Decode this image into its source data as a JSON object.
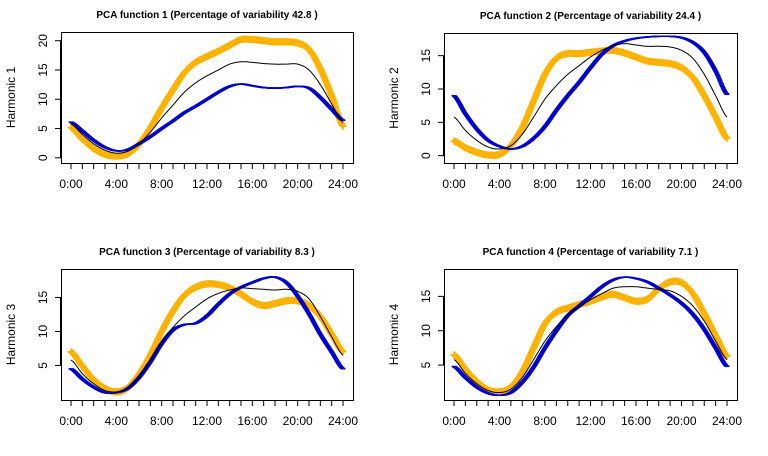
{
  "colors": {
    "mean": "#000000",
    "plus": "#FFB300",
    "minus": "#0000CC"
  },
  "chart_data": [
    {
      "type": "line",
      "title": "PCA function 1 (Percentage of variability 42.8 )",
      "xlabel": "",
      "ylabel": "Harmonic 1",
      "x_tick_labels": [
        "0:00",
        "4:00",
        "8:00",
        "12:00",
        "16:00",
        "20:00",
        "24:00"
      ],
      "y_ticks": [
        0,
        5,
        10,
        15,
        20
      ],
      "xlim": [
        0,
        24
      ],
      "ylim": [
        -0.2,
        20.8
      ],
      "series": [
        {
          "style": "line",
          "color": "#000000",
          "x": [
            0,
            1,
            2,
            3,
            4,
            5,
            6,
            7,
            8,
            9,
            10,
            11,
            12,
            13,
            14,
            15,
            16,
            17,
            18,
            19,
            20,
            21,
            22,
            23,
            24
          ],
          "values": [
            5.8,
            4,
            2.4,
            1.3,
            0.8,
            1.1,
            2.4,
            4.4,
            6.8,
            9,
            11.2,
            12.8,
            14,
            15,
            16,
            16.4,
            16.3,
            16.1,
            16,
            16,
            16,
            15,
            12.5,
            9.2,
            6
          ]
        },
        {
          "style": "plus",
          "color": "#FFB300",
          "x": [
            0,
            1,
            2,
            3,
            4,
            5,
            6,
            7,
            8,
            9,
            10,
            11,
            12,
            13,
            14,
            15,
            16,
            17,
            18,
            19,
            20,
            21,
            22,
            23,
            24
          ],
          "values": [
            5.2,
            3.2,
            1.6,
            0.6,
            0.3,
            0.7,
            2.3,
            5.1,
            8.5,
            11.6,
            14.5,
            16.3,
            17.3,
            18.2,
            19.2,
            20.2,
            20.2,
            20,
            19.8,
            19.8,
            19.6,
            18.5,
            15.2,
            10.6,
            5.4
          ]
        },
        {
          "style": "minus",
          "color": "#0000CC",
          "x": [
            0,
            1,
            2,
            3,
            4,
            5,
            6,
            7,
            8,
            9,
            10,
            11,
            12,
            13,
            14,
            15,
            16,
            17,
            18,
            19,
            20,
            21,
            22,
            23,
            24
          ],
          "values": [
            6.1,
            4.6,
            3,
            1.8,
            1.2,
            1.4,
            2.4,
            3.6,
            5,
            6.3,
            7.7,
            8.8,
            10,
            11.2,
            12.2,
            12.6,
            12.3,
            12,
            11.9,
            12,
            12.2,
            11.9,
            10.3,
            8.3,
            6.4
          ]
        }
      ]
    },
    {
      "type": "line",
      "title": "PCA function 2 (Percentage of variability 24.4 )",
      "xlabel": "",
      "ylabel": "Harmonic 2",
      "x_tick_labels": [
        "0:00",
        "4:00",
        "8:00",
        "12:00",
        "16:00",
        "20:00",
        "24:00"
      ],
      "y_ticks": [
        0,
        5,
        10,
        15
      ],
      "xlim": [
        0,
        24
      ],
      "ylim": [
        -0.5,
        17.8
      ],
      "series": [
        {
          "style": "line",
          "color": "#000000",
          "x": [
            0,
            1,
            2,
            3,
            4,
            5,
            6,
            7,
            8,
            9,
            10,
            11,
            12,
            13,
            14,
            15,
            16,
            17,
            18,
            19,
            20,
            21,
            22,
            23,
            24
          ],
          "values": [
            5.8,
            3.8,
            2.3,
            1.3,
            1,
            1.5,
            3.2,
            5.8,
            8.5,
            10.5,
            12.2,
            13.5,
            14.8,
            15.8,
            16.5,
            16.8,
            16.6,
            16.4,
            16.4,
            16.3,
            15.8,
            14.6,
            12.2,
            9,
            5.8
          ]
        },
        {
          "style": "plus",
          "color": "#FFB300",
          "x": [
            0,
            1,
            2,
            3,
            4,
            5,
            6,
            7,
            8,
            9,
            10,
            11,
            12,
            13,
            14,
            15,
            16,
            17,
            18,
            19,
            20,
            21,
            22,
            23,
            24
          ],
          "values": [
            2.2,
            1.2,
            0.5,
            0.1,
            0.2,
            1.5,
            4.2,
            8.2,
            12.2,
            14.6,
            15.3,
            15.3,
            15.5,
            15.7,
            15.8,
            15.4,
            14.8,
            14.2,
            14,
            13.8,
            13.2,
            11.7,
            9,
            5.8,
            2.6
          ]
        },
        {
          "style": "minus",
          "color": "#0000CC",
          "x": [
            0,
            1,
            2,
            3,
            4,
            5,
            6,
            7,
            8,
            9,
            10,
            11,
            12,
            13,
            14,
            15,
            16,
            17,
            18,
            19,
            20,
            21,
            22,
            23,
            24
          ],
          "values": [
            9,
            6.3,
            4,
            2.3,
            1.4,
            1,
            1.4,
            2.6,
            4.4,
            6.8,
            9,
            11,
            13.2,
            15.2,
            16.5,
            17.2,
            17.6,
            17.8,
            17.9,
            17.9,
            17.7,
            17,
            15.5,
            12.7,
            9.2
          ]
        }
      ]
    },
    {
      "type": "line",
      "title": "PCA function 3 (Percentage of variability 8.3 )",
      "xlabel": "",
      "ylabel": "Harmonic 3",
      "x_tick_labels": [
        "0:00",
        "4:00",
        "8:00",
        "12:00",
        "16:00",
        "20:00",
        "24:00"
      ],
      "y_ticks": [
        5,
        10,
        15
      ],
      "xlim": [
        0,
        24
      ],
      "ylim": [
        0.5,
        18.6
      ],
      "series": [
        {
          "style": "line",
          "color": "#000000",
          "x": [
            0,
            1,
            2,
            3,
            4,
            5,
            6,
            7,
            8,
            9,
            10,
            11,
            12,
            13,
            14,
            15,
            16,
            17,
            18,
            19,
            20,
            21,
            22,
            23,
            24
          ],
          "values": [
            5.8,
            3.8,
            2.3,
            1.3,
            1.1,
            1.6,
            3.3,
            5.8,
            8.5,
            10.6,
            12.3,
            13.6,
            14.8,
            15.6,
            16.1,
            16.4,
            16.3,
            16.2,
            16.1,
            16.2,
            15.9,
            14.8,
            12.2,
            9.2,
            6.5
          ]
        },
        {
          "style": "plus",
          "color": "#FFB300",
          "x": [
            0,
            1,
            2,
            3,
            4,
            5,
            6,
            7,
            8,
            9,
            10,
            11,
            12,
            13,
            14,
            15,
            16,
            17,
            18,
            19,
            20,
            21,
            22,
            23,
            24
          ],
          "values": [
            7,
            4.9,
            2.9,
            1.6,
            1.1,
            1.7,
            3.7,
            6.5,
            10,
            13,
            15.3,
            16.5,
            17,
            16.9,
            16.4,
            15.5,
            14.4,
            13.8,
            14.1,
            14.5,
            14.5,
            13.8,
            12.2,
            9.6,
            7
          ]
        },
        {
          "style": "minus",
          "color": "#0000CC",
          "x": [
            0,
            1,
            2,
            3,
            4,
            5,
            6,
            7,
            8,
            9,
            10,
            11,
            12,
            13,
            14,
            15,
            16,
            17,
            18,
            19,
            20,
            21,
            22,
            23,
            24
          ],
          "values": [
            4.5,
            3,
            1.8,
            1,
            1,
            1.6,
            3.2,
            5.5,
            8.2,
            10.2,
            11,
            11.2,
            12.3,
            14,
            15.5,
            16.5,
            17.2,
            17.8,
            18,
            17.2,
            15.2,
            12.6,
            9.6,
            7,
            4.5
          ]
        }
      ]
    },
    {
      "type": "line",
      "title": "PCA function 4 (Percentage of variability 7.1 )",
      "xlabel": "",
      "ylabel": "Harmonic 4",
      "x_tick_labels": [
        "0:00",
        "4:00",
        "8:00",
        "12:00",
        "16:00",
        "20:00",
        "24:00"
      ],
      "y_ticks": [
        5,
        10,
        15
      ],
      "xlim": [
        0,
        24
      ],
      "ylim": [
        0.5,
        18.4
      ],
      "series": [
        {
          "style": "line",
          "color": "#000000",
          "x": [
            0,
            1,
            2,
            3,
            4,
            5,
            6,
            7,
            8,
            9,
            10,
            11,
            12,
            13,
            14,
            15,
            16,
            17,
            18,
            19,
            20,
            21,
            22,
            23,
            24
          ],
          "values": [
            5.8,
            3.8,
            2.3,
            1.3,
            1,
            1.5,
            3.2,
            5.8,
            8.5,
            10.6,
            12.3,
            13.4,
            14.5,
            15.4,
            16.2,
            16.4,
            16.4,
            16.2,
            16,
            15.8,
            15,
            13.6,
            11.4,
            8.5,
            5.8
          ]
        },
        {
          "style": "plus",
          "color": "#FFB300",
          "x": [
            0,
            1,
            2,
            3,
            4,
            5,
            6,
            7,
            8,
            9,
            10,
            11,
            12,
            13,
            14,
            15,
            16,
            17,
            18,
            19,
            20,
            21,
            22,
            23,
            24
          ],
          "values": [
            6.5,
            4.4,
            2.6,
            1.4,
            1.1,
            1.8,
            4,
            7.5,
            11,
            12.7,
            13.3,
            13.8,
            14.3,
            14.9,
            15.3,
            14.8,
            14.3,
            14.6,
            16.1,
            17.1,
            17,
            15.4,
            12.5,
            9.3,
            6.3
          ]
        },
        {
          "style": "minus",
          "color": "#0000CC",
          "x": [
            0,
            1,
            2,
            3,
            4,
            5,
            6,
            7,
            8,
            9,
            10,
            11,
            12,
            13,
            14,
            15,
            16,
            17,
            18,
            19,
            20,
            21,
            22,
            23,
            24
          ],
          "values": [
            4.8,
            3.2,
            1.8,
            0.9,
            0.6,
            1,
            2.5,
            4.7,
            7.5,
            10,
            12.2,
            13.6,
            15,
            16.4,
            17.4,
            17.8,
            17.6,
            17.1,
            16.2,
            15.2,
            14,
            12.4,
            10.2,
            7.5,
            4.8
          ]
        }
      ]
    }
  ]
}
